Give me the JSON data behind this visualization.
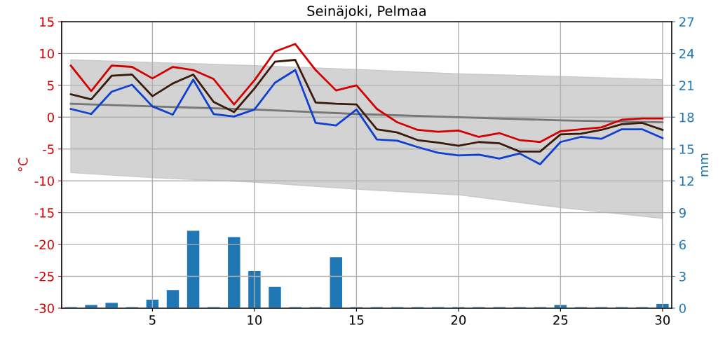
{
  "chart_data": {
    "type": "line",
    "title": "Seinäjoki, Pelmaa",
    "ylabel": "°C",
    "y2label": "mm",
    "x": [
      1,
      2,
      3,
      4,
      5,
      6,
      7,
      8,
      9,
      10,
      11,
      12,
      13,
      14,
      15,
      16,
      17,
      18,
      19,
      20,
      21,
      22,
      23,
      24,
      25,
      26,
      27,
      28,
      29,
      30
    ],
    "xlim": [
      0.55,
      30.45
    ],
    "xticks": [
      5,
      10,
      15,
      20,
      25,
      30
    ],
    "ylim": [
      -30,
      15
    ],
    "yticks": [
      -30,
      -25,
      -20,
      -15,
      -10,
      -5,
      0,
      5,
      10,
      15
    ],
    "y2lim": [
      0,
      27
    ],
    "y2ticks": [
      0,
      3,
      6,
      9,
      12,
      15,
      18,
      21,
      24,
      27
    ],
    "grid": true,
    "legend": false,
    "series": [
      {
        "type": "bar",
        "axis": "y2",
        "color": "#1f77b4",
        "values": [
          0.1,
          0.3,
          0.5,
          0.1,
          0.8,
          1.7,
          7.3,
          0.1,
          6.7,
          3.5,
          2.0,
          0.1,
          0.1,
          4.8,
          0.1,
          0.1,
          0.1,
          0.1,
          0.1,
          0.1,
          0.1,
          0.1,
          0.1,
          0.1,
          0.3,
          0.1,
          0.1,
          0.1,
          0.1,
          0.4
        ]
      },
      {
        "color": "#777777",
        "x": [
          1,
          5,
          10,
          15,
          20,
          25,
          30
        ],
        "values": [
          2.1,
          1.7,
          1.2,
          0.5,
          0.0,
          -0.5,
          -0.8
        ],
        "lower": [
          -8.7,
          -9.5,
          -10.2,
          -11.3,
          -12.2,
          -14.2,
          -15.9
        ],
        "upper": [
          9.0,
          8.6,
          8.1,
          7.5,
          6.8,
          6.4,
          5.9
        ]
      },
      {
        "color": "#d40000",
        "values": [
          8.1,
          4.1,
          8.1,
          7.9,
          6.1,
          7.9,
          7.4,
          6.0,
          2.0,
          5.8,
          10.3,
          11.5,
          7.4,
          4.2,
          5.0,
          1.3,
          -0.8,
          -2.0,
          -2.3,
          -2.1,
          -3.1,
          -2.5,
          -3.6,
          -3.9,
          -2.2,
          -1.9,
          -1.6,
          -0.4,
          -0.2,
          -0.2
        ]
      },
      {
        "color": "#3a1a0a",
        "values": [
          3.6,
          2.8,
          6.5,
          6.7,
          3.3,
          5.3,
          6.7,
          2.4,
          0.8,
          4.5,
          8.7,
          9.0,
          2.3,
          2.1,
          2.0,
          -1.9,
          -2.4,
          -3.6,
          -4.0,
          -4.5,
          -3.9,
          -4.1,
          -5.4,
          -5.4,
          -2.7,
          -2.6,
          -2.0,
          -1.1,
          -0.9,
          -2.0
        ]
      },
      {
        "color": "#1040d0",
        "values": [
          1.3,
          0.5,
          4.0,
          5.1,
          1.7,
          0.4,
          5.9,
          0.5,
          0.1,
          1.2,
          5.4,
          7.4,
          -0.9,
          -1.3,
          1.2,
          -3.5,
          -3.7,
          -4.7,
          -5.6,
          -6.0,
          -5.9,
          -6.5,
          -5.7,
          -7.4,
          -3.9,
          -3.1,
          -3.4,
          -1.9,
          -1.9,
          -3.3
        ]
      }
    ]
  }
}
